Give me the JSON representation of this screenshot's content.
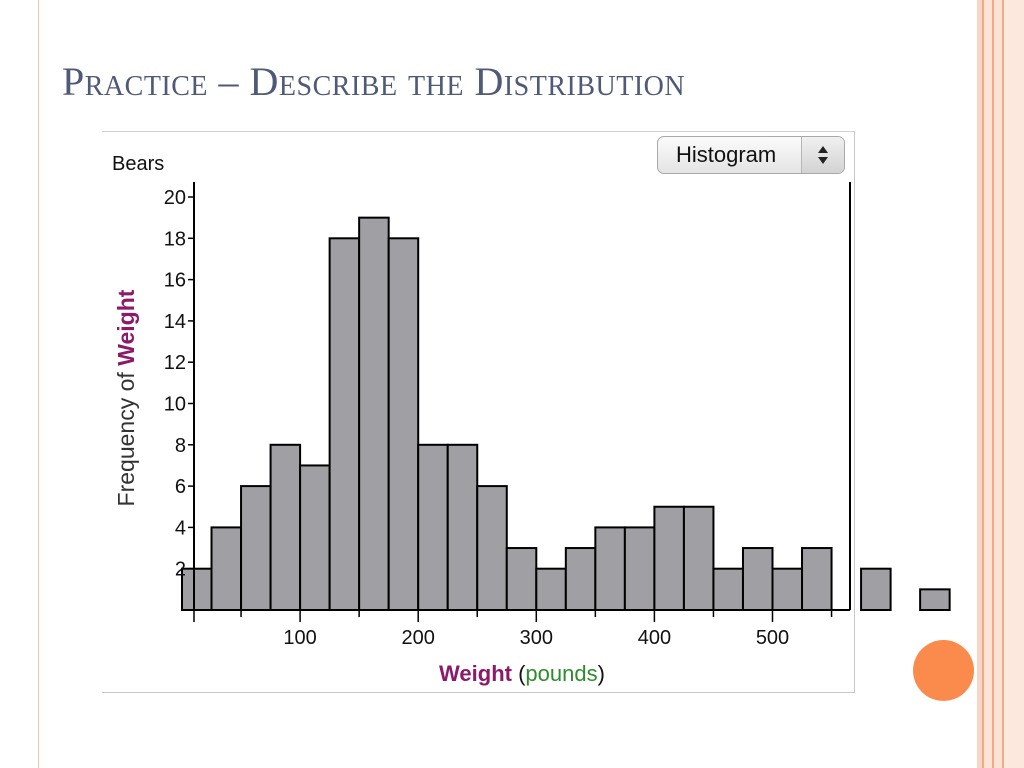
{
  "slide": {
    "title": "Practice – Describe the Distribution"
  },
  "control": {
    "plot_type": "Histogram"
  },
  "chart_data": {
    "type": "bar",
    "dataset_name": "Bears",
    "xlabel": "Weight",
    "xlabel_unit": "pounds",
    "ylabel_prefix": "Frequency of ",
    "ylabel_var": "Weight",
    "bin_width": 25,
    "bin_start": 0,
    "values": [
      2,
      4,
      6,
      8,
      7,
      18,
      19,
      18,
      8,
      8,
      6,
      3,
      2,
      3,
      4,
      4,
      5,
      5,
      2,
      3,
      2,
      3,
      0,
      2,
      0,
      1
    ],
    "xlim": [
      0,
      550
    ],
    "ylim": [
      0,
      20
    ],
    "x_ticks": [
      100,
      200,
      300,
      400,
      500
    ],
    "y_ticks": [
      2,
      4,
      6,
      8,
      10,
      12,
      14,
      16,
      18,
      20
    ],
    "bar_color": "#a0a0a4",
    "xlabel_var_color": "#8b1a6b",
    "xlabel_unit_color": "#2e8b2e",
    "ylabel_var_color": "#8b1a6b",
    "grid": false
  }
}
